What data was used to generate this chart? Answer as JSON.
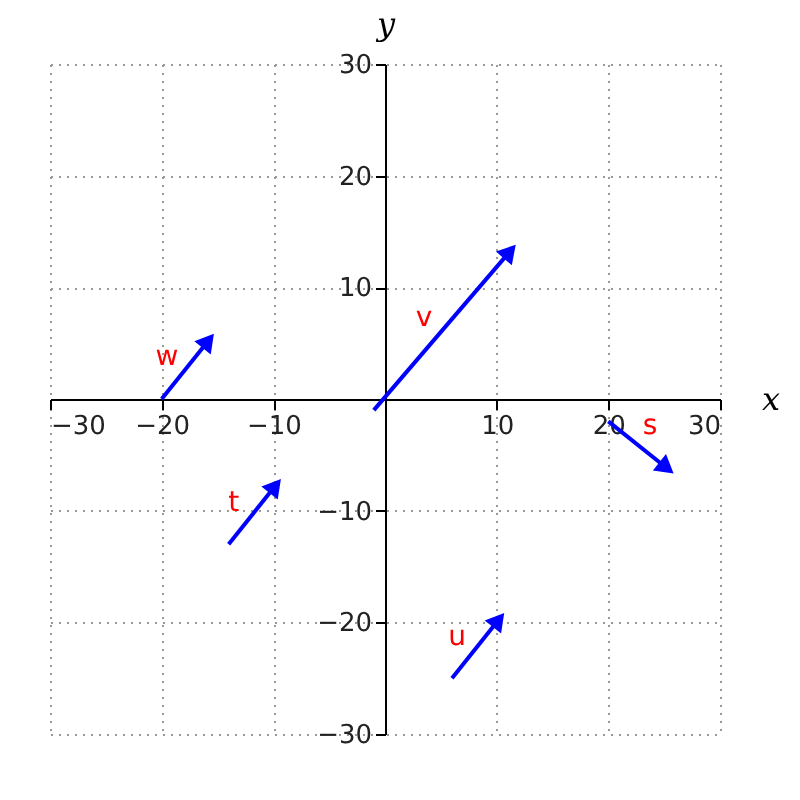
{
  "chart_data": {
    "type": "line",
    "xlabel": "x",
    "ylabel": "y",
    "xlim": [
      -30,
      30
    ],
    "ylim": [
      -30,
      30
    ],
    "xticks": [
      -30,
      -20,
      -10,
      10,
      20,
      30
    ],
    "yticks": [
      -30,
      -20,
      -10,
      10,
      20,
      30
    ],
    "grid": true,
    "line_style": "solid",
    "series": [
      {
        "name": "w",
        "color": "#0000ff",
        "x": [
          -20,
          -16
        ],
        "values": [
          0,
          5
        ]
      },
      {
        "name": "v",
        "color": "#0000ff",
        "x": [
          -1,
          11
        ],
        "values": [
          -1,
          13
        ]
      },
      {
        "name": "t",
        "color": "#0000ff",
        "x": [
          -14,
          -10
        ],
        "values": [
          -13,
          -8
        ]
      },
      {
        "name": "u",
        "color": "#0000ff",
        "x": [
          6,
          10
        ],
        "values": [
          -25,
          -20
        ]
      },
      {
        "name": "s",
        "color": "#0000ff",
        "x": [
          20,
          25
        ],
        "values": [
          -2,
          -6
        ]
      }
    ]
  }
}
